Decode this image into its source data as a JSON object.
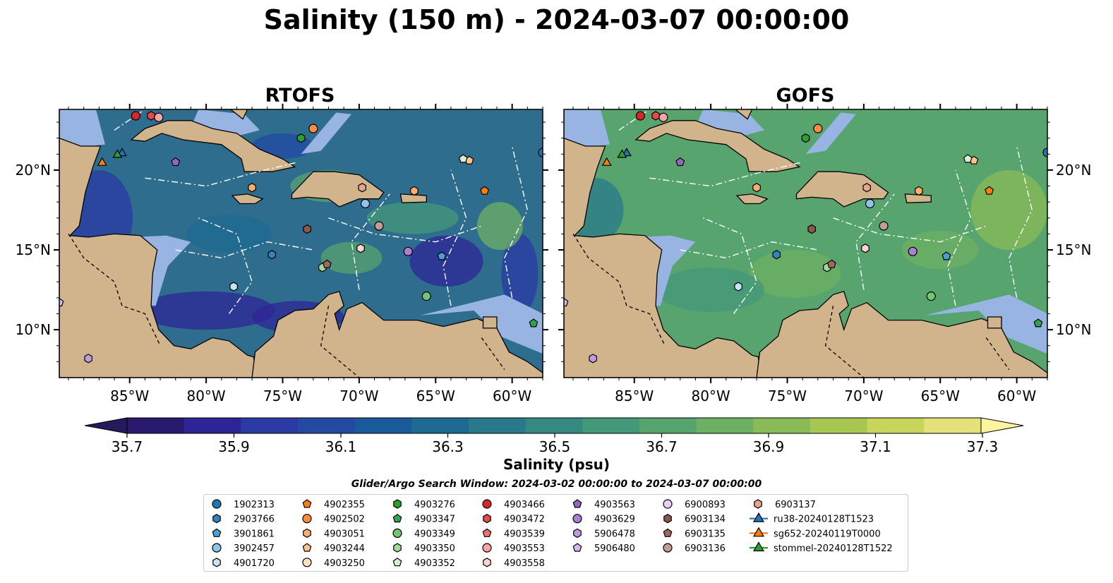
{
  "title": "Salinity (150 m) - 2024-03-07 00:00:00",
  "panels": [
    {
      "title": "RTOFS",
      "variant": "rtofs"
    },
    {
      "title": "GOFS",
      "variant": "gofs"
    }
  ],
  "lon_ticks": [
    "85°W",
    "80°W",
    "75°W",
    "70°W",
    "65°W",
    "60°W"
  ],
  "lat_ticks": [
    "20°N",
    "15°N",
    "10°N"
  ],
  "colorbar": {
    "label": "Salinity (psu)",
    "ticks": [
      "35.7",
      "35.9",
      "36.1",
      "36.3",
      "36.5",
      "36.7",
      "36.9",
      "37.1",
      "37.3"
    ],
    "colors": [
      "#2a1a6e",
      "#2d2596",
      "#2b3aa4",
      "#2349a3",
      "#1b5a9a",
      "#1d6b92",
      "#287a8a",
      "#358983",
      "#44987a",
      "#57a46f",
      "#6eb063",
      "#89bb57",
      "#a8c752",
      "#c9d55a",
      "#e5e07a"
    ],
    "ocean_color_rtofs": "#2f6d8e",
    "ocean_color_gofs": "#57a46f",
    "land_color": "#d2b48c",
    "shelf_color": "#97b4e3",
    "deep_color": "#2a1a6e"
  },
  "search_window": "Glider/Argo Search Window: 2024-03-02 00:00:00 to 2024-03-07 00:00:00",
  "legend_columns": [
    [
      {
        "label": "1902313",
        "marker": "circle",
        "color": "#1f77b4"
      },
      {
        "label": "2903766",
        "marker": "hexagon",
        "color": "#3182bd"
      },
      {
        "label": "3901861",
        "marker": "pentagon",
        "color": "#4a9fd8"
      },
      {
        "label": "3902457",
        "marker": "circle",
        "color": "#8ec4ea"
      },
      {
        "label": "4901720",
        "marker": "hexagon",
        "color": "#c6e3f7"
      }
    ],
    [
      {
        "label": "4902355",
        "marker": "pentagon",
        "color": "#ff7f0e"
      },
      {
        "label": "4902502",
        "marker": "circle",
        "color": "#fd8d3c"
      },
      {
        "label": "4903051",
        "marker": "hexagon",
        "color": "#fdae6b"
      },
      {
        "label": "4903244",
        "marker": "pentagon",
        "color": "#fdc48a"
      },
      {
        "label": "4903250",
        "marker": "circle",
        "color": "#fee0c2"
      }
    ],
    [
      {
        "label": "4903276",
        "marker": "hexagon",
        "color": "#2ca02c"
      },
      {
        "label": "4903347",
        "marker": "pentagon",
        "color": "#31a354"
      },
      {
        "label": "4903349",
        "marker": "circle",
        "color": "#74c476"
      },
      {
        "label": "4903350",
        "marker": "hexagon",
        "color": "#a1d99b"
      },
      {
        "label": "4903352",
        "marker": "pentagon",
        "color": "#d4f0cf"
      }
    ],
    [
      {
        "label": "4903466",
        "marker": "circle",
        "color": "#d62728"
      },
      {
        "label": "4903472",
        "marker": "hexagon",
        "color": "#e34a4a"
      },
      {
        "label": "4903539",
        "marker": "pentagon",
        "color": "#f0716f"
      },
      {
        "label": "4903553",
        "marker": "circle",
        "color": "#f7a5a3"
      },
      {
        "label": "4903558",
        "marker": "hexagon",
        "color": "#fdd3d1"
      }
    ],
    [
      {
        "label": "4903563",
        "marker": "pentagon",
        "color": "#9467bd"
      },
      {
        "label": "4903629",
        "marker": "circle",
        "color": "#a97fd0"
      },
      {
        "label": "5906478",
        "marker": "hexagon",
        "color": "#bf9be0"
      },
      {
        "label": "5906480",
        "marker": "pentagon",
        "color": "#d4bbef"
      }
    ],
    [
      {
        "label": "6900893",
        "marker": "circle",
        "color": "#e8cff8"
      },
      {
        "label": "6903134",
        "marker": "hexagon",
        "color": "#8c564b"
      },
      {
        "label": "6903135",
        "marker": "pentagon",
        "color": "#a0685c"
      },
      {
        "label": "6903136",
        "marker": "circle",
        "color": "#c49c94"
      }
    ],
    [
      {
        "label": "6903137",
        "marker": "hexagon",
        "color": "#e6a58f"
      },
      {
        "label": "ru38-20240128T1523",
        "marker": "triangle-line",
        "color": "#1f77b4"
      },
      {
        "label": "sg652-20240119T0000",
        "marker": "triangle-line",
        "color": "#ff7f0e"
      },
      {
        "label": "stommel-20240128T1522",
        "marker": "triangle-line",
        "color": "#2ca02c"
      }
    ]
  ],
  "map_markers": [
    {
      "id": "6903137",
      "lon": -69.8,
      "lat": 18.9,
      "marker": "hexagon",
      "color": "#e6a58f"
    },
    {
      "id": "4903466",
      "lon": -84.6,
      "lat": 23.4,
      "marker": "circle",
      "color": "#d62728"
    },
    {
      "id": "4903472",
      "lon": -83.6,
      "lat": 23.4,
      "marker": "hexagon",
      "color": "#e34a4a"
    },
    {
      "id": "4903553",
      "lon": -83.1,
      "lat": 23.3,
      "marker": "circle",
      "color": "#f7a5a3"
    },
    {
      "id": "4903276",
      "lon": -73.8,
      "lat": 22.0,
      "marker": "hexagon",
      "color": "#2ca02c"
    },
    {
      "id": "4902502",
      "lon": -73.0,
      "lat": 22.6,
      "marker": "circle",
      "color": "#fd8d3c"
    },
    {
      "id": "4903563",
      "lon": -82.0,
      "lat": 20.5,
      "marker": "pentagon",
      "color": "#9467bd"
    },
    {
      "id": "4903051",
      "lon": -77.0,
      "lat": 18.9,
      "marker": "hexagon",
      "color": "#fdae6b"
    },
    {
      "id": "4903244",
      "lon": -62.8,
      "lat": 20.6,
      "marker": "pentagon",
      "color": "#fdc48a"
    },
    {
      "id": "4903352",
      "lon": -63.2,
      "lat": 20.7,
      "marker": "pentagon",
      "color": "#d4f0cf"
    },
    {
      "id": "4902355",
      "lon": -61.8,
      "lat": 18.7,
      "marker": "pentagon",
      "color": "#ff7f0e"
    },
    {
      "id": "4903051b",
      "lon": -66.4,
      "lat": 18.7,
      "marker": "hexagon",
      "color": "#fdae6b"
    },
    {
      "id": "3902457",
      "lon": -69.6,
      "lat": 17.9,
      "marker": "circle",
      "color": "#8ec4ea"
    },
    {
      "id": "6903134",
      "lon": -73.4,
      "lat": 16.3,
      "marker": "hexagon",
      "color": "#8c564b"
    },
    {
      "id": "6903136",
      "lon": -68.7,
      "lat": 16.5,
      "marker": "circle",
      "color": "#c49c94"
    },
    {
      "id": "4903558",
      "lon": -69.9,
      "lat": 15.1,
      "marker": "hexagon",
      "color": "#fdd3d1"
    },
    {
      "id": "4903629",
      "lon": -66.8,
      "lat": 14.9,
      "marker": "circle",
      "color": "#a97fd0"
    },
    {
      "id": "2903766",
      "lon": -75.7,
      "lat": 14.7,
      "marker": "hexagon",
      "color": "#3182bd"
    },
    {
      "id": "3901861",
      "lon": -64.6,
      "lat": 14.6,
      "marker": "pentagon",
      "color": "#4a9fd8"
    },
    {
      "id": "4903350",
      "lon": -72.4,
      "lat": 13.9,
      "marker": "hexagon",
      "color": "#a1d99b"
    },
    {
      "id": "6903135",
      "lon": -72.1,
      "lat": 14.1,
      "marker": "pentagon",
      "color": "#a0685c"
    },
    {
      "id": "4901720",
      "lon": -78.2,
      "lat": 12.7,
      "marker": "hexagon",
      "color": "#c6e3f7"
    },
    {
      "id": "4903349",
      "lon": -65.6,
      "lat": 12.1,
      "marker": "circle",
      "color": "#74c476"
    },
    {
      "id": "5906480",
      "lon": -89.6,
      "lat": 11.7,
      "marker": "pentagon",
      "color": "#d4bbef"
    },
    {
      "id": "4903347",
      "lon": -58.6,
      "lat": 10.4,
      "marker": "pentagon",
      "color": "#31a354"
    },
    {
      "id": "5906478",
      "lon": -87.7,
      "lat": 8.2,
      "marker": "hexagon",
      "color": "#bf9be0"
    },
    {
      "id": "1902313",
      "lon": -58.0,
      "lat": 21.1,
      "marker": "circle",
      "color": "#1f77b4"
    },
    {
      "id": "ru38-20240128T1523",
      "lon": -85.5,
      "lat": 21.1,
      "marker": "triangle",
      "color": "#1f77b4"
    },
    {
      "id": "sg652-20240119T0000",
      "lon": -86.8,
      "lat": 20.5,
      "marker": "triangle",
      "color": "#ff7f0e"
    },
    {
      "id": "stommel-20240128T1522",
      "lon": -85.8,
      "lat": 21.0,
      "marker": "triangle",
      "color": "#2ca02c"
    }
  ]
}
